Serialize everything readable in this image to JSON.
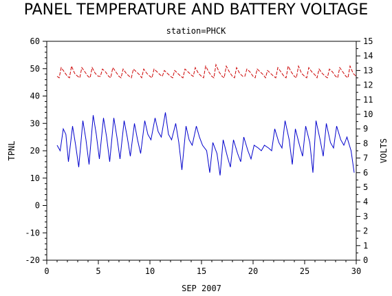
{
  "chart_data": {
    "type": "line",
    "title": "PANEL TEMPERATURE AND BATTERY VOLTAGE",
    "subtitle": "station=PHCK",
    "xlabel": "SEP 2007",
    "ylabel_left": "TPNL",
    "ylabel_right": "VOLTS",
    "xlim": [
      0,
      30
    ],
    "x_ticks": [
      0,
      5,
      10,
      15,
      20,
      25,
      30
    ],
    "ylim_left": [
      -20,
      60
    ],
    "y_ticks_left": [
      -20,
      -10,
      0,
      10,
      20,
      30,
      40,
      50,
      60
    ],
    "ylim_right": [
      0,
      15
    ],
    "y_ticks_right": [
      0,
      1,
      2,
      3,
      4,
      5,
      6,
      7,
      8,
      9,
      10,
      11,
      12,
      13,
      14,
      15
    ],
    "grid": false,
    "series": [
      {
        "name": "TPNL",
        "axis": "left",
        "color": "#0000cc",
        "style": "solid",
        "x": [
          1.0,
          1.3,
          1.6,
          1.85,
          2.1,
          2.5,
          2.8,
          3.1,
          3.5,
          3.8,
          4.1,
          4.5,
          4.8,
          5.1,
          5.5,
          5.8,
          6.1,
          6.5,
          6.8,
          7.1,
          7.5,
          7.8,
          8.1,
          8.5,
          8.8,
          9.1,
          9.5,
          9.8,
          10.1,
          10.5,
          10.8,
          11.1,
          11.5,
          11.8,
          12.1,
          12.5,
          12.8,
          13.1,
          13.5,
          13.8,
          14.1,
          14.5,
          14.8,
          15.1,
          15.5,
          15.8,
          16.1,
          16.5,
          16.8,
          17.1,
          17.5,
          17.8,
          18.1,
          18.5,
          18.8,
          19.1,
          19.5,
          19.8,
          20.1,
          20.5,
          20.8,
          21.1,
          21.5,
          21.8,
          22.1,
          22.5,
          22.8,
          23.1,
          23.5,
          23.8,
          24.1,
          24.5,
          24.8,
          25.1,
          25.5,
          25.8,
          26.1,
          26.5,
          26.8,
          27.1,
          27.5,
          27.8,
          28.1,
          28.5,
          28.8,
          29.1,
          29.5,
          29.8
        ],
        "y": [
          22,
          20,
          28,
          26,
          16,
          29,
          22,
          14,
          31,
          24,
          15,
          33,
          26,
          17,
          32,
          25,
          16,
          32,
          25,
          17,
          31,
          25,
          18,
          30,
          24,
          19,
          31,
          26,
          24,
          32,
          27,
          25,
          34,
          26,
          24,
          30,
          23,
          13,
          29,
          24,
          22,
          29,
          25,
          22,
          20,
          12,
          23,
          19,
          11,
          24,
          18,
          14,
          24,
          19,
          16,
          25,
          20,
          17,
          22,
          21,
          20,
          22,
          21,
          20,
          28,
          23,
          21,
          31,
          24,
          15,
          28,
          22,
          18,
          29,
          23,
          12,
          31,
          24,
          18,
          30,
          23,
          21,
          29,
          24,
          22,
          25,
          20,
          12
        ]
      },
      {
        "name": "VOLTS",
        "axis": "right",
        "color": "#cc0000",
        "style": "dashed",
        "x": [
          1.0,
          1.2,
          1.4,
          1.7,
          2.0,
          2.2,
          2.4,
          2.7,
          3.0,
          3.2,
          3.4,
          3.7,
          4.0,
          4.2,
          4.4,
          4.7,
          5.0,
          5.2,
          5.4,
          5.7,
          6.0,
          6.2,
          6.4,
          6.7,
          7.0,
          7.2,
          7.4,
          7.7,
          8.0,
          8.2,
          8.4,
          8.7,
          9.0,
          9.2,
          9.4,
          9.7,
          10.0,
          10.2,
          10.4,
          10.7,
          11.0,
          11.2,
          11.4,
          11.7,
          12.0,
          12.2,
          12.4,
          12.7,
          13.0,
          13.2,
          13.4,
          13.7,
          14.0,
          14.2,
          14.4,
          14.7,
          15.0,
          15.2,
          15.4,
          15.7,
          16.0,
          16.2,
          16.4,
          16.7,
          17.0,
          17.2,
          17.4,
          17.7,
          18.0,
          18.2,
          18.4,
          18.7,
          19.0,
          19.2,
          19.4,
          19.7,
          20.0,
          20.2,
          20.4,
          20.7,
          21.0,
          21.2,
          21.4,
          21.7,
          22.0,
          22.2,
          22.4,
          22.7,
          23.0,
          23.2,
          23.4,
          23.7,
          24.0,
          24.2,
          24.4,
          24.7,
          25.0,
          25.2,
          25.4,
          25.7,
          26.0,
          26.2,
          26.4,
          26.7,
          27.0,
          27.2,
          27.4,
          27.7,
          28.0,
          28.2,
          28.4,
          28.7,
          29.0,
          29.2,
          29.4,
          29.7,
          30.0
        ],
        "y": [
          12.6,
          12.5,
          13.2,
          12.9,
          12.6,
          12.5,
          13.3,
          12.8,
          12.6,
          12.5,
          13.2,
          12.9,
          12.6,
          12.5,
          13.2,
          12.8,
          12.6,
          12.6,
          13.1,
          12.9,
          12.6,
          12.5,
          13.2,
          12.9,
          12.6,
          12.5,
          13.1,
          12.8,
          12.6,
          12.5,
          13.1,
          12.9,
          12.7,
          12.5,
          13.1,
          12.8,
          12.6,
          12.5,
          13.1,
          12.9,
          12.7,
          12.6,
          13.0,
          12.8,
          12.6,
          12.5,
          13.0,
          12.8,
          12.6,
          12.5,
          13.1,
          12.9,
          12.7,
          12.6,
          13.2,
          12.8,
          12.6,
          12.5,
          13.3,
          12.9,
          12.6,
          12.5,
          13.4,
          12.9,
          12.6,
          12.5,
          13.3,
          12.9,
          12.6,
          12.5,
          13.2,
          12.8,
          12.6,
          12.6,
          13.1,
          12.9,
          12.6,
          12.5,
          13.1,
          12.9,
          12.7,
          12.5,
          13.0,
          12.8,
          12.6,
          12.5,
          13.2,
          12.9,
          12.6,
          12.5,
          13.3,
          12.9,
          12.6,
          12.5,
          13.3,
          12.8,
          12.6,
          12.5,
          13.2,
          12.9,
          12.7,
          12.5,
          13.1,
          12.8,
          12.6,
          12.5,
          13.1,
          12.9,
          12.6,
          12.5,
          13.2,
          12.9,
          12.6,
          12.5,
          13.3,
          12.8,
          12.6
        ]
      }
    ]
  }
}
